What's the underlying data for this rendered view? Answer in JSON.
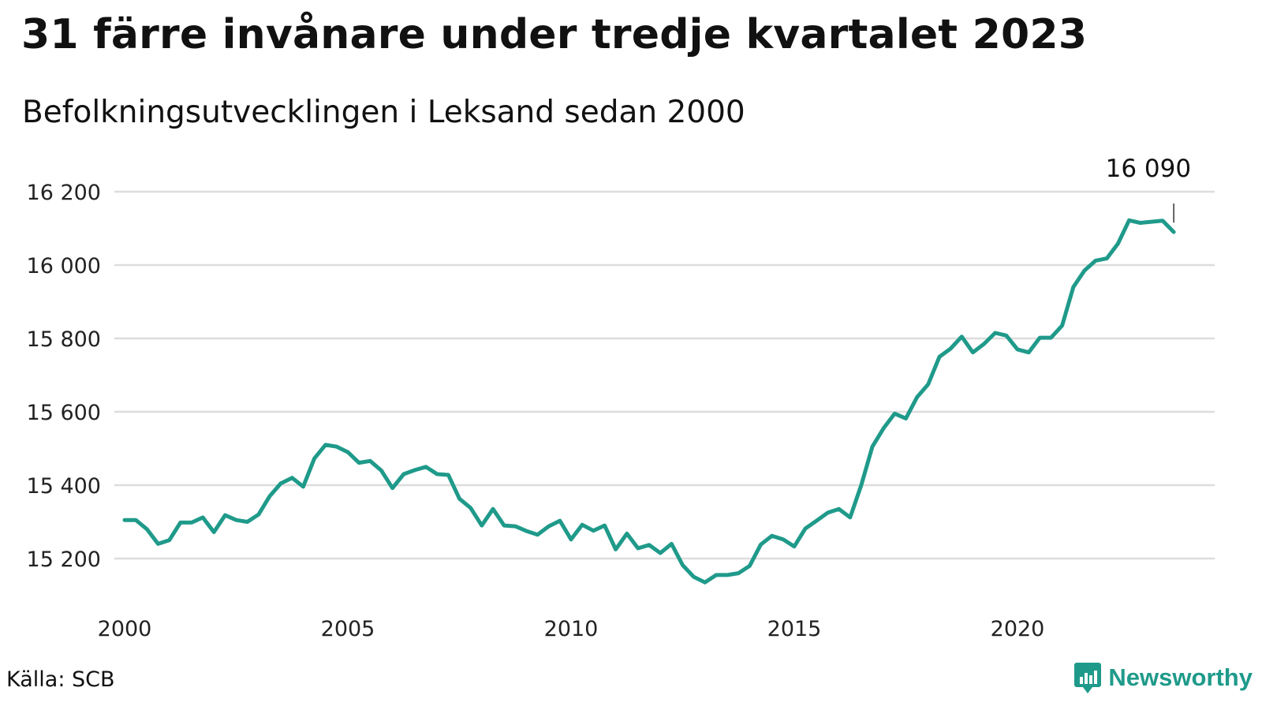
{
  "title": "31 färre invånare under tredje kvartalet 2023",
  "subtitle": "Befolkningsutvecklingen i Leksand sedan 2000",
  "source": "Källa: SCB",
  "brand": "Newsworthy",
  "colors": {
    "line": "#1f9a8a",
    "grid": "#dddddd",
    "brand": "#1f9a8a"
  },
  "chart_data": {
    "type": "line",
    "title": "31 färre invånare under tredje kvartalet 2023",
    "subtitle": "Befolkningsutvecklingen i Leksand sedan 2000",
    "xlim": [
      2000,
      2024.6
    ],
    "ylim": [
      15120,
      16260
    ],
    "x_ticks": [
      2000,
      2005,
      2010,
      2015,
      2020
    ],
    "x_tick_labels": [
      "2000",
      "2005",
      "2010",
      "2015",
      "2020"
    ],
    "y_ticks": [
      15200,
      15400,
      15600,
      15800,
      16000,
      16200
    ],
    "y_tick_labels": [
      "15 200",
      "15 400",
      "15 600",
      "15 800",
      "16 000",
      "16 200"
    ],
    "grid": true,
    "end_label": "16 090",
    "series": [
      {
        "x": [
          2000.0,
          2000.25,
          2000.5,
          2000.75,
          2001.0,
          2001.25,
          2001.5,
          2001.75,
          2002.0,
          2002.25,
          2002.5,
          2002.75,
          2003.0,
          2003.25,
          2003.5,
          2003.75,
          2004.0,
          2004.25,
          2004.5,
          2004.75,
          2005.0,
          2005.25,
          2005.5,
          2005.75,
          2006.0,
          2006.25,
          2006.5,
          2006.75,
          2007.0,
          2007.25,
          2007.5,
          2007.75,
          2008.0,
          2008.25,
          2008.5,
          2008.75,
          2009.0,
          2009.25,
          2009.5,
          2009.75,
          2010.0,
          2010.25,
          2010.5,
          2010.75,
          2011.0,
          2011.25,
          2011.5,
          2011.75,
          2012.0,
          2012.25,
          2012.5,
          2012.75,
          2013.0,
          2013.25,
          2013.5,
          2013.75,
          2014.0,
          2014.25,
          2014.5,
          2014.75,
          2015.0,
          2015.25,
          2015.5,
          2015.75,
          2016.0,
          2016.25,
          2016.5,
          2016.75,
          2017.0,
          2017.25,
          2017.5,
          2017.75,
          2018.0,
          2018.25,
          2018.5,
          2018.75,
          2019.0,
          2019.25,
          2019.5,
          2019.75,
          2020.0,
          2020.25,
          2020.5,
          2020.75,
          2021.0,
          2021.25,
          2021.5,
          2021.75,
          2022.0,
          2022.25,
          2022.5,
          2022.75,
          2023.0,
          2023.25,
          2023.5
        ],
        "values": [
          15305,
          15305,
          15280,
          15240,
          15250,
          15298,
          15298,
          15312,
          15272,
          15318,
          15305,
          15300,
          15320,
          15370,
          15405,
          15420,
          15396,
          15473,
          15510,
          15505,
          15490,
          15461,
          15466,
          15440,
          15392,
          15430,
          15441,
          15450,
          15430,
          15428,
          15363,
          15338,
          15290,
          15335,
          15290,
          15288,
          15275,
          15265,
          15288,
          15303,
          15252,
          15292,
          15276,
          15290,
          15225,
          15268,
          15228,
          15237,
          15215,
          15240,
          15182,
          15150,
          15135,
          15155,
          15155,
          15160,
          15180,
          15238,
          15262,
          15252,
          15233,
          15282,
          15303,
          15325,
          15335,
          15312,
          15400,
          15505,
          15555,
          15595,
          15582,
          15640,
          15675,
          15750,
          15772,
          15805,
          15762,
          15785,
          15815,
          15808,
          15770,
          15762,
          15802,
          15802,
          15835,
          15940,
          15985,
          16012,
          16018,
          16058,
          16122,
          16115,
          16118,
          16121,
          16090
        ]
      }
    ]
  }
}
